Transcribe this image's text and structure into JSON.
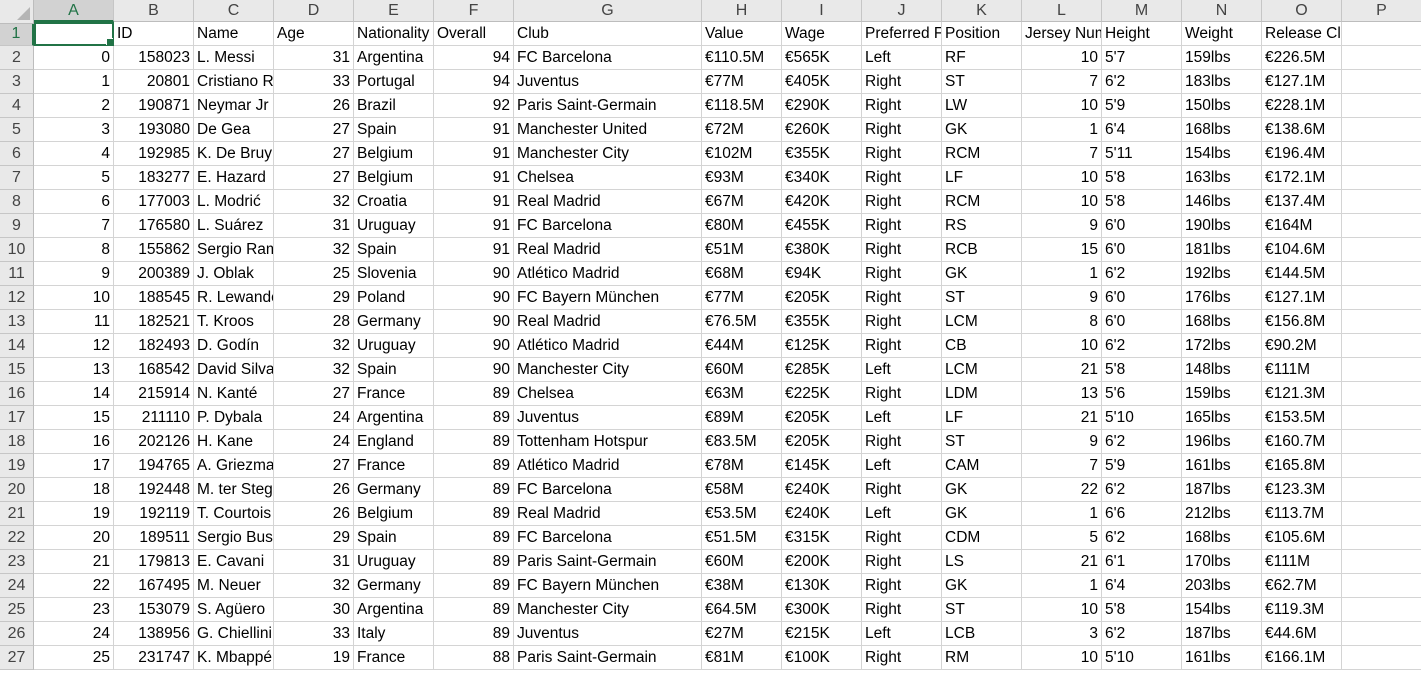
{
  "column_letters": [
    "A",
    "B",
    "C",
    "D",
    "E",
    "F",
    "G",
    "H",
    "I",
    "J",
    "K",
    "L",
    "M",
    "N",
    "O",
    "P"
  ],
  "header_row": {
    "row_number": "1",
    "cells": [
      "",
      "ID",
      "Name",
      "Age",
      "Nationality",
      "Overall",
      "Club",
      "Value",
      "Wage",
      "Preferred Foot",
      "Position",
      "Jersey Number",
      "Height",
      "Weight",
      "Release Clause",
      ""
    ]
  },
  "rows": [
    {
      "n": "2",
      "c": [
        "0",
        "158023",
        "L. Messi",
        "31",
        "Argentina",
        "94",
        "FC Barcelona",
        "€110.5M",
        "€565K",
        "Left",
        "RF",
        "10",
        "5'7",
        "159lbs",
        "€226.5M",
        ""
      ]
    },
    {
      "n": "3",
      "c": [
        "1",
        "20801",
        "Cristiano Ronaldo",
        "33",
        "Portugal",
        "94",
        "Juventus",
        "€77M",
        "€405K",
        "Right",
        "ST",
        "7",
        "6'2",
        "183lbs",
        "€127.1M",
        ""
      ]
    },
    {
      "n": "4",
      "c": [
        "2",
        "190871",
        "Neymar Jr",
        "26",
        "Brazil",
        "92",
        "Paris Saint-Germain",
        "€118.5M",
        "€290K",
        "Right",
        "LW",
        "10",
        "5'9",
        "150lbs",
        "€228.1M",
        ""
      ]
    },
    {
      "n": "5",
      "c": [
        "3",
        "193080",
        "De Gea",
        "27",
        "Spain",
        "91",
        "Manchester United",
        "€72M",
        "€260K",
        "Right",
        "GK",
        "1",
        "6'4",
        "168lbs",
        "€138.6M",
        ""
      ]
    },
    {
      "n": "6",
      "c": [
        "4",
        "192985",
        "K. De Bruyne",
        "27",
        "Belgium",
        "91",
        "Manchester City",
        "€102M",
        "€355K",
        "Right",
        "RCM",
        "7",
        "5'11",
        "154lbs",
        "€196.4M",
        ""
      ]
    },
    {
      "n": "7",
      "c": [
        "5",
        "183277",
        "E. Hazard",
        "27",
        "Belgium",
        "91",
        "Chelsea",
        "€93M",
        "€340K",
        "Right",
        "LF",
        "10",
        "5'8",
        "163lbs",
        "€172.1M",
        ""
      ]
    },
    {
      "n": "8",
      "c": [
        "6",
        "177003",
        "L. Modrić",
        "32",
        "Croatia",
        "91",
        "Real Madrid",
        "€67M",
        "€420K",
        "Right",
        "RCM",
        "10",
        "5'8",
        "146lbs",
        "€137.4M",
        ""
      ]
    },
    {
      "n": "9",
      "c": [
        "7",
        "176580",
        "L. Suárez",
        "31",
        "Uruguay",
        "91",
        "FC Barcelona",
        "€80M",
        "€455K",
        "Right",
        "RS",
        "9",
        "6'0",
        "190lbs",
        "€164M",
        ""
      ]
    },
    {
      "n": "10",
      "c": [
        "8",
        "155862",
        "Sergio Ramos",
        "32",
        "Spain",
        "91",
        "Real Madrid",
        "€51M",
        "€380K",
        "Right",
        "RCB",
        "15",
        "6'0",
        "181lbs",
        "€104.6M",
        ""
      ]
    },
    {
      "n": "11",
      "c": [
        "9",
        "200389",
        "J. Oblak",
        "25",
        "Slovenia",
        "90",
        "Atlético Madrid",
        "€68M",
        "€94K",
        "Right",
        "GK",
        "1",
        "6'2",
        "192lbs",
        "€144.5M",
        ""
      ]
    },
    {
      "n": "12",
      "c": [
        "10",
        "188545",
        "R. Lewandowski",
        "29",
        "Poland",
        "90",
        "FC Bayern München",
        "€77M",
        "€205K",
        "Right",
        "ST",
        "9",
        "6'0",
        "176lbs",
        "€127.1M",
        ""
      ]
    },
    {
      "n": "13",
      "c": [
        "11",
        "182521",
        "T. Kroos",
        "28",
        "Germany",
        "90",
        "Real Madrid",
        "€76.5M",
        "€355K",
        "Right",
        "LCM",
        "8",
        "6'0",
        "168lbs",
        "€156.8M",
        ""
      ]
    },
    {
      "n": "14",
      "c": [
        "12",
        "182493",
        "D. Godín",
        "32",
        "Uruguay",
        "90",
        "Atlético Madrid",
        "€44M",
        "€125K",
        "Right",
        "CB",
        "10",
        "6'2",
        "172lbs",
        "€90.2M",
        ""
      ]
    },
    {
      "n": "15",
      "c": [
        "13",
        "168542",
        "David Silva",
        "32",
        "Spain",
        "90",
        "Manchester City",
        "€60M",
        "€285K",
        "Left",
        "LCM",
        "21",
        "5'8",
        "148lbs",
        "€111M",
        ""
      ]
    },
    {
      "n": "16",
      "c": [
        "14",
        "215914",
        "N. Kanté",
        "27",
        "France",
        "89",
        "Chelsea",
        "€63M",
        "€225K",
        "Right",
        "LDM",
        "13",
        "5'6",
        "159lbs",
        "€121.3M",
        ""
      ]
    },
    {
      "n": "17",
      "c": [
        "15",
        "211110",
        "P. Dybala",
        "24",
        "Argentina",
        "89",
        "Juventus",
        "€89M",
        "€205K",
        "Left",
        "LF",
        "21",
        "5'10",
        "165lbs",
        "€153.5M",
        ""
      ]
    },
    {
      "n": "18",
      "c": [
        "16",
        "202126",
        "H. Kane",
        "24",
        "England",
        "89",
        "Tottenham Hotspur",
        "€83.5M",
        "€205K",
        "Right",
        "ST",
        "9",
        "6'2",
        "196lbs",
        "€160.7M",
        ""
      ]
    },
    {
      "n": "19",
      "c": [
        "17",
        "194765",
        "A. Griezmann",
        "27",
        "France",
        "89",
        "Atlético Madrid",
        "€78M",
        "€145K",
        "Left",
        "CAM",
        "7",
        "5'9",
        "161lbs",
        "€165.8M",
        ""
      ]
    },
    {
      "n": "20",
      "c": [
        "18",
        "192448",
        "M. ter Stegen",
        "26",
        "Germany",
        "89",
        "FC Barcelona",
        "€58M",
        "€240K",
        "Right",
        "GK",
        "22",
        "6'2",
        "187lbs",
        "€123.3M",
        ""
      ]
    },
    {
      "n": "21",
      "c": [
        "19",
        "192119",
        "T. Courtois",
        "26",
        "Belgium",
        "89",
        "Real Madrid",
        "€53.5M",
        "€240K",
        "Left",
        "GK",
        "1",
        "6'6",
        "212lbs",
        "€113.7M",
        ""
      ]
    },
    {
      "n": "22",
      "c": [
        "20",
        "189511",
        "Sergio Busquets",
        "29",
        "Spain",
        "89",
        "FC Barcelona",
        "€51.5M",
        "€315K",
        "Right",
        "CDM",
        "5",
        "6'2",
        "168lbs",
        "€105.6M",
        ""
      ]
    },
    {
      "n": "23",
      "c": [
        "21",
        "179813",
        "E. Cavani",
        "31",
        "Uruguay",
        "89",
        "Paris Saint-Germain",
        "€60M",
        "€200K",
        "Right",
        "LS",
        "21",
        "6'1",
        "170lbs",
        "€111M",
        ""
      ]
    },
    {
      "n": "24",
      "c": [
        "22",
        "167495",
        "M. Neuer",
        "32",
        "Germany",
        "89",
        "FC Bayern München",
        "€38M",
        "€130K",
        "Right",
        "GK",
        "1",
        "6'4",
        "203lbs",
        "€62.7M",
        ""
      ]
    },
    {
      "n": "25",
      "c": [
        "23",
        "153079",
        "S. Agüero",
        "30",
        "Argentina",
        "89",
        "Manchester City",
        "€64.5M",
        "€300K",
        "Right",
        "ST",
        "10",
        "5'8",
        "154lbs",
        "€119.3M",
        ""
      ]
    },
    {
      "n": "26",
      "c": [
        "24",
        "138956",
        "G. Chiellini",
        "33",
        "Italy",
        "89",
        "Juventus",
        "€27M",
        "€215K",
        "Left",
        "LCB",
        "3",
        "6'2",
        "187lbs",
        "€44.6M",
        ""
      ]
    },
    {
      "n": "27",
      "c": [
        "25",
        "231747",
        "K. Mbappé",
        "19",
        "France",
        "88",
        "Paris Saint-Germain",
        "€81M",
        "€100K",
        "Right",
        "RM",
        "10",
        "5'10",
        "161lbs",
        "€166.1M",
        ""
      ]
    }
  ]
}
